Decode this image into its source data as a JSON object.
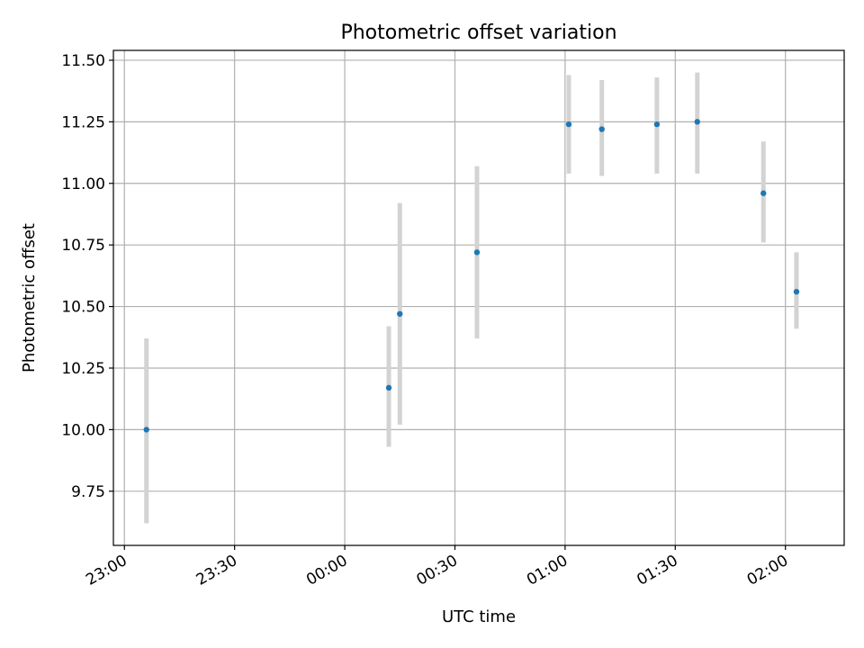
{
  "chart_data": {
    "type": "scatter",
    "title": "Photometric offset variation",
    "xlabel": "UTC time",
    "ylabel": "Photometric offset",
    "grid": true,
    "x_tick_labels": [
      "23:00",
      "23:30",
      "00:00",
      "00:30",
      "01:00",
      "01:30",
      "02:00"
    ],
    "y_tick_labels": [
      "9.75",
      "10.00",
      "10.25",
      "10.50",
      "10.75",
      "11.00",
      "11.25",
      "11.50"
    ],
    "xlim": [
      "22:57",
      "02:16"
    ],
    "ylim": [
      9.53,
      11.54
    ],
    "marker_color": "#1f77b4",
    "errorbar_color": "#d3d3d3",
    "points": [
      {
        "time": "23:06",
        "y": 10.0,
        "ylow": 9.62,
        "yhigh": 10.37
      },
      {
        "time": "00:12",
        "y": 10.17,
        "ylow": 9.93,
        "yhigh": 10.42
      },
      {
        "time": "00:15",
        "y": 10.47,
        "ylow": 10.02,
        "yhigh": 10.92
      },
      {
        "time": "00:36",
        "y": 10.72,
        "ylow": 10.37,
        "yhigh": 11.07
      },
      {
        "time": "01:01",
        "y": 11.24,
        "ylow": 11.04,
        "yhigh": 11.44
      },
      {
        "time": "01:10",
        "y": 11.22,
        "ylow": 11.03,
        "yhigh": 11.42
      },
      {
        "time": "01:25",
        "y": 11.24,
        "ylow": 11.04,
        "yhigh": 11.43
      },
      {
        "time": "01:36",
        "y": 11.25,
        "ylow": 11.04,
        "yhigh": 11.45
      },
      {
        "time": "01:54",
        "y": 10.96,
        "ylow": 10.76,
        "yhigh": 11.17
      },
      {
        "time": "02:03",
        "y": 10.56,
        "ylow": 10.41,
        "yhigh": 10.72
      }
    ]
  }
}
